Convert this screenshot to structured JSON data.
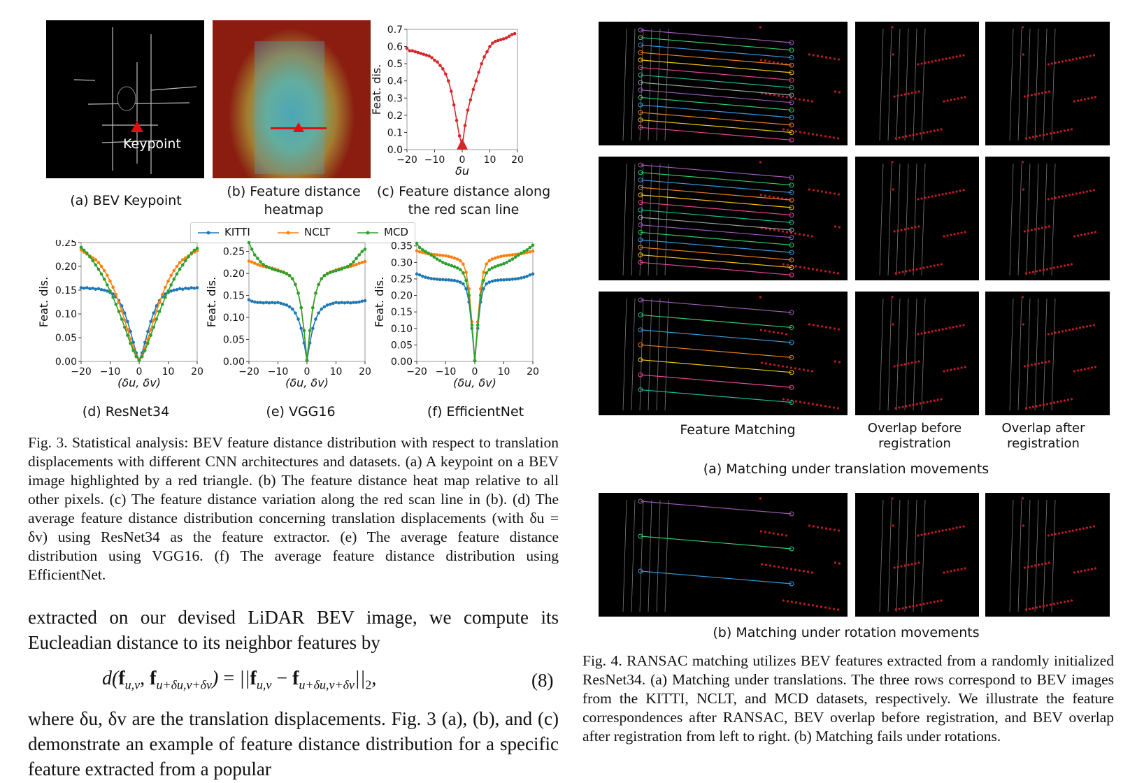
{
  "fig3": {
    "keypoint_label": "Keypoint",
    "sub_a": "(a) BEV Keypoint",
    "sub_b": "(b) Feature distance heatmap",
    "sub_c": "(c) Feature distance along the red scan line",
    "sub_d": "(d) ResNet34",
    "sub_e": "(e) VGG16",
    "sub_f": "(f) EfficientNet",
    "legend": [
      "KITTI",
      "NCLT",
      "MCD"
    ],
    "caption": "Fig. 3.   Statistical analysis: BEV feature distance distribution with respect to translation displacements with different CNN architectures and datasets. (a) A keypoint on a BEV image highlighted by a red triangle. (b) The feature distance heat map relative to all other pixels. (c) The feature distance variation along the red scan line in (b). (d) The average feature distance distribution concerning translation displacements (with δu = δv) using ResNet34 as the feature extractor. (e) The average feature distance distribution using VGG16. (f) The average feature distance distribution using EfficientNet."
  },
  "colors": {
    "kitti": "#1f77b4",
    "nclt": "#ff7f0e",
    "mcd": "#2ca02c",
    "red": "#d62728"
  },
  "chart_data": [
    {
      "id": "c",
      "type": "line",
      "xlabel": "δu",
      "ylabel": "Feat. dis.",
      "xlim": [
        -20,
        20
      ],
      "ylim": [
        0,
        0.7
      ],
      "xticks": [
        "−20",
        "−10",
        "0",
        "10",
        "20"
      ],
      "yticks": [
        "0.0",
        "0.1",
        "0.2",
        "0.3",
        "0.4",
        "0.5",
        "0.6",
        "0.7"
      ],
      "series": [
        {
          "x": [
            -20,
            -19,
            -18,
            -17,
            -16,
            -15,
            -14,
            -13,
            -12,
            -11,
            -10,
            -9,
            -8,
            -7,
            -6,
            -5,
            -4,
            -3,
            -2,
            -1,
            0,
            1,
            2,
            3,
            4,
            5,
            6,
            7,
            8,
            9,
            10,
            11,
            12,
            13,
            14,
            15,
            16,
            17,
            18,
            19
          ],
          "values": [
            0.59,
            0.575,
            0.575,
            0.57,
            0.565,
            0.56,
            0.555,
            0.55,
            0.545,
            0.535,
            0.52,
            0.51,
            0.49,
            0.47,
            0.44,
            0.4,
            0.34,
            0.26,
            0.17,
            0.08,
            0.02,
            0.14,
            0.23,
            0.29,
            0.35,
            0.4,
            0.45,
            0.5,
            0.54,
            0.57,
            0.6,
            0.62,
            0.63,
            0.635,
            0.64,
            0.645,
            0.65,
            0.66,
            0.67,
            0.675
          ]
        }
      ]
    },
    {
      "id": "d",
      "type": "line",
      "ylabel": "Feat. dis.",
      "xlabel": "(δu, δv)",
      "xlim": [
        -20,
        20
      ],
      "ylim": [
        0,
        0.25
      ],
      "xticks": [
        "−20",
        "−10",
        "0",
        "10",
        "20"
      ],
      "yticks": [
        "0.00",
        "0.05",
        "0.10",
        "0.15",
        "0.20",
        "0.25"
      ],
      "x": [
        -20,
        -19,
        -18,
        -17,
        -16,
        -15,
        -14,
        -13,
        -12,
        -11,
        -10,
        -9,
        -8,
        -7,
        -6,
        -5,
        -4,
        -3,
        -2,
        -1,
        0,
        1,
        2,
        3,
        4,
        5,
        6,
        7,
        8,
        9,
        10,
        11,
        12,
        13,
        14,
        15,
        16,
        17,
        18,
        19,
        20
      ],
      "series": [
        {
          "name": "KITTI",
          "values": [
            0.155,
            0.154,
            0.155,
            0.153,
            0.154,
            0.152,
            0.153,
            0.151,
            0.15,
            0.148,
            0.145,
            0.142,
            0.136,
            0.128,
            0.117,
            0.102,
            0.084,
            0.063,
            0.04,
            0.018,
            0.003,
            0.018,
            0.04,
            0.063,
            0.084,
            0.102,
            0.117,
            0.128,
            0.136,
            0.142,
            0.145,
            0.148,
            0.15,
            0.151,
            0.153,
            0.152,
            0.154,
            0.153,
            0.155,
            0.154,
            0.155
          ]
        },
        {
          "name": "NCLT",
          "values": [
            0.235,
            0.23,
            0.226,
            0.222,
            0.218,
            0.214,
            0.208,
            0.2,
            0.191,
            0.181,
            0.169,
            0.156,
            0.141,
            0.124,
            0.106,
            0.087,
            0.067,
            0.047,
            0.028,
            0.012,
            0.003,
            0.012,
            0.028,
            0.047,
            0.067,
            0.087,
            0.106,
            0.124,
            0.141,
            0.156,
            0.169,
            0.181,
            0.191,
            0.2,
            0.208,
            0.214,
            0.218,
            0.222,
            0.226,
            0.23,
            0.233
          ]
        },
        {
          "name": "MCD",
          "values": [
            0.24,
            0.234,
            0.228,
            0.22,
            0.212,
            0.203,
            0.194,
            0.184,
            0.173,
            0.161,
            0.148,
            0.135,
            0.12,
            0.105,
            0.089,
            0.072,
            0.055,
            0.038,
            0.023,
            0.01,
            0.002,
            0.01,
            0.023,
            0.038,
            0.055,
            0.072,
            0.089,
            0.105,
            0.12,
            0.135,
            0.148,
            0.161,
            0.173,
            0.184,
            0.194,
            0.203,
            0.212,
            0.22,
            0.228,
            0.234,
            0.238
          ]
        }
      ]
    },
    {
      "id": "e",
      "type": "line",
      "ylabel": "Feat. dis.",
      "xlabel": "(δu, δv)",
      "xlim": [
        -20,
        20
      ],
      "ylim": [
        0,
        0.27
      ],
      "xticks": [
        "−20",
        "−10",
        "0",
        "10",
        "20"
      ],
      "yticks": [
        "0.00",
        "0.05",
        "0.10",
        "0.15",
        "0.20",
        "0.25"
      ],
      "x": [
        -20,
        -19,
        -18,
        -17,
        -16,
        -15,
        -14,
        -13,
        -12,
        -11,
        -10,
        -9,
        -8,
        -7,
        -6,
        -5,
        -4,
        -3,
        -2,
        -1,
        0,
        1,
        2,
        3,
        4,
        5,
        6,
        7,
        8,
        9,
        10,
        11,
        12,
        13,
        14,
        15,
        16,
        17,
        18,
        19,
        20
      ],
      "series": [
        {
          "name": "KITTI",
          "values": [
            0.14,
            0.137,
            0.135,
            0.134,
            0.134,
            0.133,
            0.134,
            0.133,
            0.134,
            0.133,
            0.134,
            0.132,
            0.13,
            0.128,
            0.124,
            0.119,
            0.11,
            0.096,
            0.075,
            0.042,
            0.002,
            0.042,
            0.075,
            0.096,
            0.11,
            0.119,
            0.124,
            0.128,
            0.13,
            0.132,
            0.134,
            0.133,
            0.134,
            0.133,
            0.134,
            0.133,
            0.134,
            0.134,
            0.135,
            0.137,
            0.138
          ]
        },
        {
          "name": "NCLT",
          "values": [
            0.228,
            0.226,
            0.223,
            0.22,
            0.218,
            0.216,
            0.214,
            0.213,
            0.212,
            0.21,
            0.208,
            0.205,
            0.203,
            0.2,
            0.195,
            0.188,
            0.175,
            0.155,
            0.122,
            0.07,
            0.003,
            0.07,
            0.122,
            0.155,
            0.175,
            0.188,
            0.195,
            0.2,
            0.203,
            0.205,
            0.208,
            0.21,
            0.212,
            0.213,
            0.214,
            0.216,
            0.218,
            0.22,
            0.223,
            0.225,
            0.227
          ]
        },
        {
          "name": "MCD",
          "values": [
            0.27,
            0.255,
            0.242,
            0.234,
            0.226,
            0.22,
            0.216,
            0.213,
            0.21,
            0.208,
            0.206,
            0.204,
            0.202,
            0.199,
            0.195,
            0.188,
            0.175,
            0.155,
            0.122,
            0.07,
            0.003,
            0.07,
            0.122,
            0.155,
            0.175,
            0.188,
            0.195,
            0.199,
            0.202,
            0.204,
            0.206,
            0.208,
            0.21,
            0.213,
            0.216,
            0.22,
            0.226,
            0.234,
            0.242,
            0.25,
            0.255
          ]
        }
      ]
    },
    {
      "id": "f",
      "type": "line",
      "ylabel": "Feat. dis.",
      "xlabel": "(δu, δv)",
      "xlim": [
        -20,
        20
      ],
      "ylim": [
        0,
        0.36
      ],
      "xticks": [
        "−20",
        "−10",
        "0",
        "10",
        "20"
      ],
      "yticks": [
        "0.00",
        "0.05",
        "0.10",
        "0.15",
        "0.20",
        "0.25",
        "0.30",
        "0.35"
      ],
      "x": [
        -20,
        -19,
        -18,
        -17,
        -16,
        -15,
        -14,
        -13,
        -12,
        -11,
        -10,
        -9,
        -8,
        -7,
        -6,
        -5,
        -4,
        -3,
        -2,
        -1,
        0,
        1,
        2,
        3,
        4,
        5,
        6,
        7,
        8,
        9,
        10,
        11,
        12,
        13,
        14,
        15,
        16,
        17,
        18,
        19,
        20
      ],
      "series": [
        {
          "name": "KITTI",
          "values": [
            0.265,
            0.262,
            0.258,
            0.255,
            0.253,
            0.251,
            0.25,
            0.249,
            0.248,
            0.248,
            0.247,
            0.247,
            0.246,
            0.245,
            0.243,
            0.24,
            0.235,
            0.22,
            0.18,
            0.1,
            0.002,
            0.1,
            0.18,
            0.22,
            0.235,
            0.24,
            0.243,
            0.245,
            0.246,
            0.247,
            0.247,
            0.248,
            0.248,
            0.249,
            0.25,
            0.251,
            0.253,
            0.255,
            0.258,
            0.262,
            0.265
          ]
        },
        {
          "name": "NCLT",
          "values": [
            0.335,
            0.332,
            0.33,
            0.328,
            0.326,
            0.325,
            0.324,
            0.323,
            0.322,
            0.321,
            0.32,
            0.318,
            0.316,
            0.313,
            0.31,
            0.305,
            0.295,
            0.27,
            0.22,
            0.12,
            0.003,
            0.12,
            0.22,
            0.27,
            0.295,
            0.305,
            0.31,
            0.313,
            0.316,
            0.318,
            0.32,
            0.321,
            0.322,
            0.323,
            0.324,
            0.325,
            0.326,
            0.328,
            0.33,
            0.332,
            0.334
          ]
        },
        {
          "name": "MCD",
          "values": [
            0.358,
            0.345,
            0.338,
            0.333,
            0.328,
            0.322,
            0.316,
            0.31,
            0.305,
            0.3,
            0.296,
            0.293,
            0.29,
            0.287,
            0.283,
            0.278,
            0.268,
            0.245,
            0.2,
            0.11,
            0.002,
            0.11,
            0.2,
            0.245,
            0.268,
            0.278,
            0.283,
            0.287,
            0.29,
            0.293,
            0.296,
            0.3,
            0.305,
            0.31,
            0.316,
            0.322,
            0.328,
            0.333,
            0.338,
            0.345,
            0.352
          ]
        }
      ]
    }
  ],
  "text_left": {
    "para1": "extracted on our devised LiDAR BEV image, we compute its Eucleadian distance to its neighbor features by",
    "equation_number": "(8)",
    "para2": "where δu, δv are the translation displacements. Fig. 3 (a), (b), and (c) demonstrate an example of feature distance distribution for a specific feature extracted from a popular"
  },
  "fig4": {
    "col_labels": [
      "Feature Matching",
      "Overlap before registration",
      "Overlap after registration"
    ],
    "sub_a": "(a) Matching under translation movements",
    "sub_b": "(b) Matching under rotation movements",
    "caption": "Fig. 4.  RANSAC matching utilizes BEV features extracted from a randomly initialized ResNet34. (a) Matching under translations. The three rows correspond to BEV images from the KITTI, NCLT, and MCD datasets, respectively. We illustrate the feature correspondences after RANSAC, BEV overlap before registration, and BEV overlap after registration from left to right. (b) Matching fails under rotations."
  }
}
